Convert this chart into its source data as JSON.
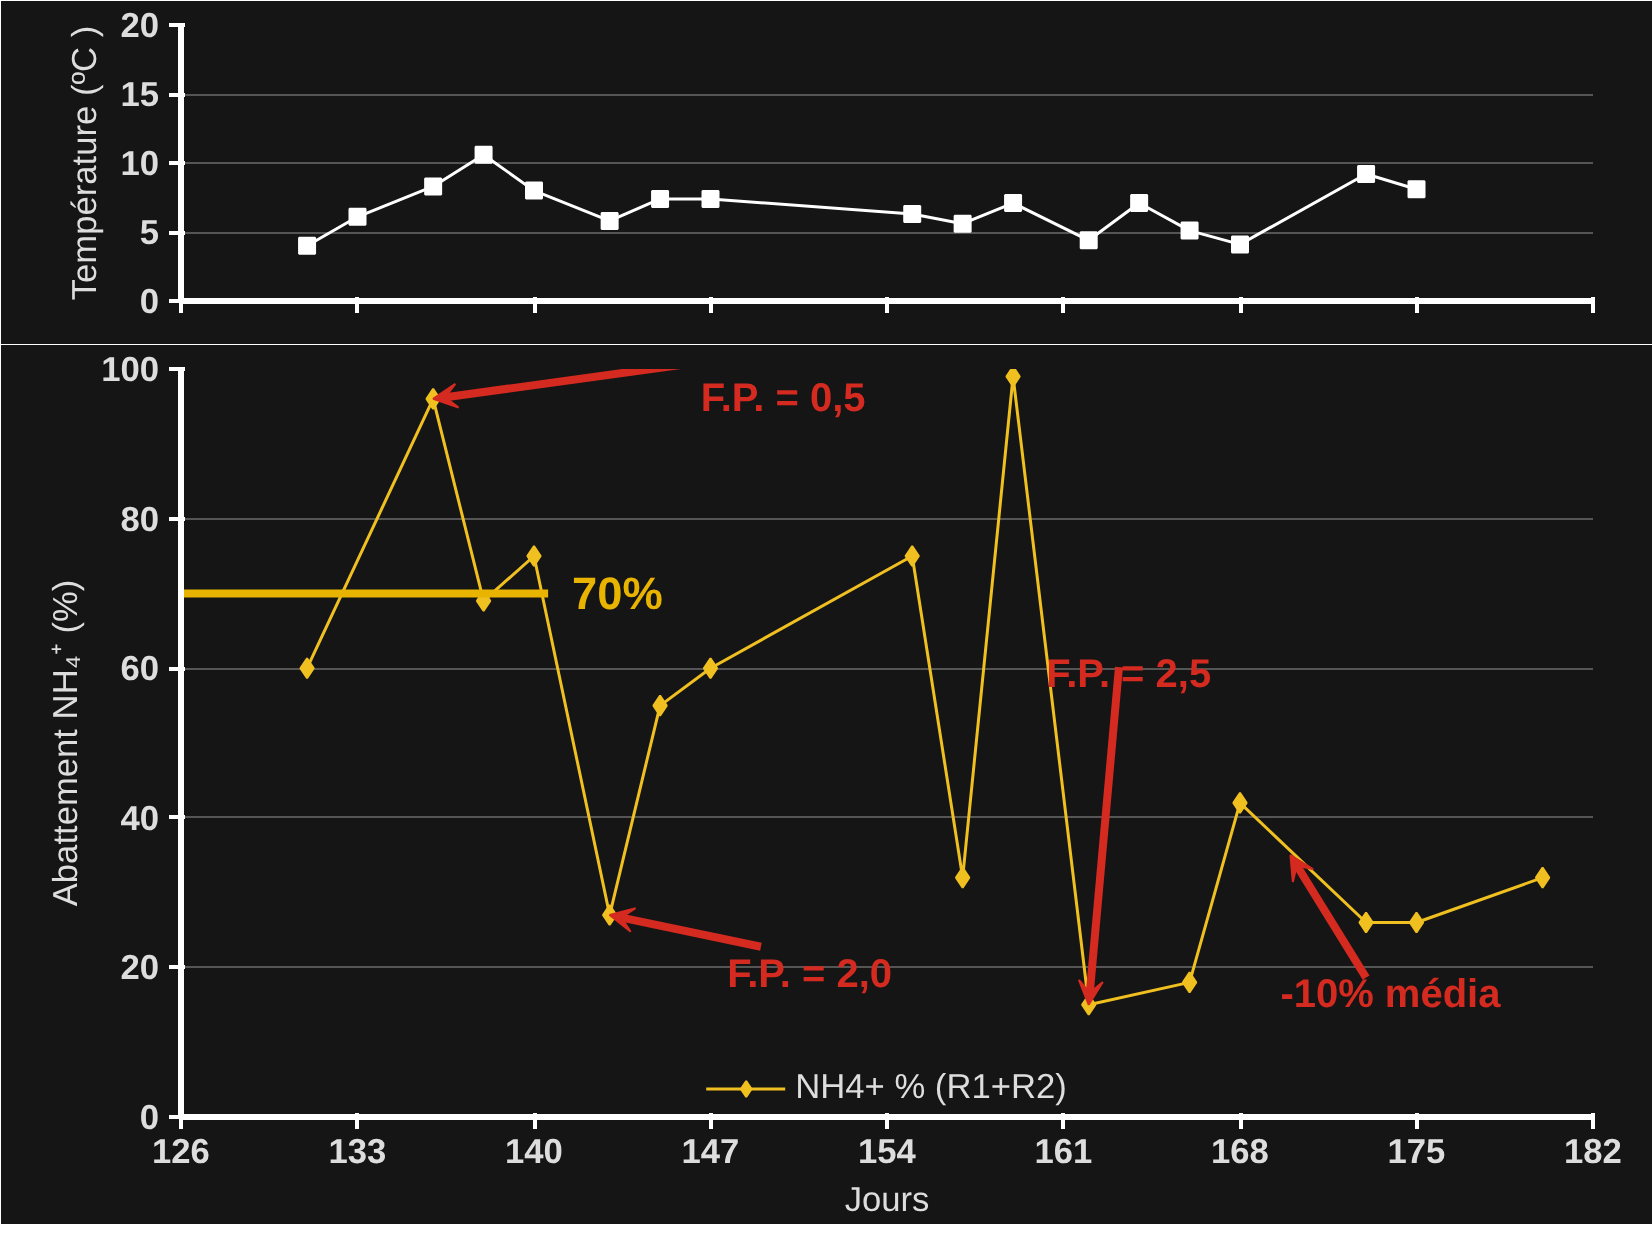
{
  "chart_data": [
    {
      "type": "line",
      "ylabel": "Température (ºC )",
      "x": [
        131,
        133,
        136,
        138,
        140,
        143,
        145,
        147,
        155,
        157,
        159,
        162,
        164,
        166,
        168,
        173,
        175
      ],
      "series": [
        {
          "color": "#ffffff",
          "values": [
            4.0,
            6.1,
            8.3,
            10.6,
            8.0,
            5.8,
            7.4,
            7.4,
            6.3,
            5.6,
            7.1,
            4.4,
            7.1,
            5.1,
            4.1,
            9.2,
            8.1
          ]
        }
      ],
      "marker": "square",
      "xlim": [
        126,
        182
      ],
      "xticks": [
        {
          "value": 126,
          "label": null
        },
        {
          "value": 133,
          "label": null
        },
        {
          "value": 140,
          "label": null
        },
        {
          "value": 147,
          "label": null
        },
        {
          "value": 154,
          "label": null
        },
        {
          "value": 161,
          "label": null
        },
        {
          "value": 168,
          "label": null
        },
        {
          "value": 175,
          "label": null
        },
        {
          "value": 182,
          "label": null
        }
      ],
      "ylim": [
        0,
        20
      ],
      "yticks": [
        0,
        5,
        10,
        15,
        20
      ],
      "grid": "y",
      "tick_labels": "y"
    },
    {
      "type": "line",
      "xlabel": "Jours",
      "ylabel": "Abattement NH₄⁺ (%)",
      "x": [
        131,
        136,
        138,
        140,
        143,
        145,
        147,
        155,
        157,
        159,
        162,
        166,
        168,
        173,
        175,
        180
      ],
      "series": [
        {
          "name": "NH4+ % (R1+R2)",
          "color": "#f0c020",
          "values": [
            60,
            96,
            69,
            75,
            27,
            55,
            60,
            75,
            32,
            99,
            15,
            18,
            42,
            26,
            26,
            32
          ]
        }
      ],
      "marker": "diamond",
      "xlim": [
        126,
        182
      ],
      "xticks": [
        126,
        133,
        140,
        147,
        154,
        161,
        168,
        175,
        182
      ],
      "ylim": [
        0,
        100
      ],
      "yticks": [
        0,
        20,
        40,
        60,
        80,
        100
      ],
      "grid": "y",
      "legend": "bottom",
      "ref_lines": [
        {
          "axis": "y",
          "value": 70,
          "label": "70%",
          "color": "#e8b400"
        }
      ],
      "annotations": [
        {
          "text": "F.P. = 0,5",
          "x": 136,
          "y": 96
        },
        {
          "text": "F.P. = 2,0",
          "x": 143,
          "y": 27
        },
        {
          "text": "F.P. = 2,5",
          "x": 162,
          "y": 15
        },
        {
          "text": "-10% média",
          "x": 170,
          "y": 35
        }
      ]
    }
  ]
}
